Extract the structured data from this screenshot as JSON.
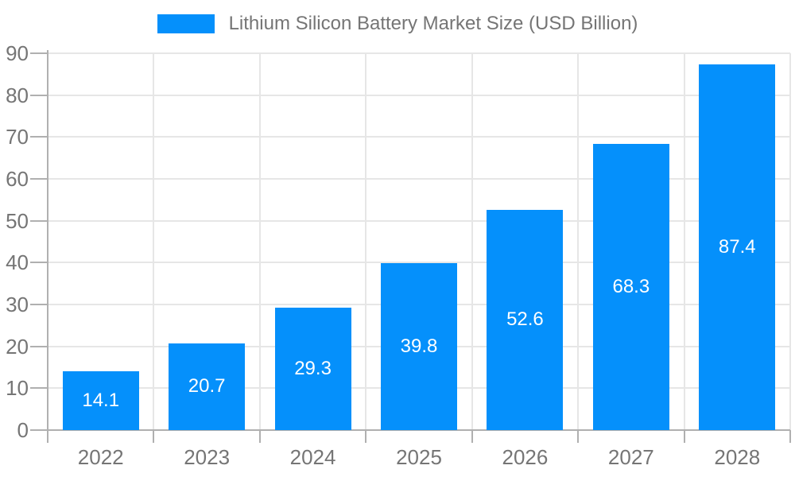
{
  "chart_data": {
    "type": "bar",
    "title": "Lithium Silicon Battery Market Size (USD Billion)",
    "categories": [
      "2022",
      "2023",
      "2024",
      "2025",
      "2026",
      "2027",
      "2028"
    ],
    "values": [
      14.1,
      20.7,
      29.3,
      39.8,
      52.6,
      68.3,
      87.4
    ],
    "value_labels": [
      "14.1",
      "20.7",
      "29.3",
      "39.8",
      "52.6",
      "68.3",
      "87.4"
    ],
    "xlabel": "",
    "ylabel": "",
    "ylim": [
      0,
      90
    ],
    "yticks": [
      0,
      10,
      20,
      30,
      40,
      50,
      60,
      70,
      80,
      90
    ],
    "grid": true,
    "legend_position": "top-center",
    "colors": {
      "bar": "#0590fb",
      "grid": "#e6e6e6",
      "axis": "#b0b0b0",
      "tick_label": "#757575",
      "legend_text": "#757575",
      "value_label": "#ffffff",
      "background": "#ffffff"
    }
  }
}
